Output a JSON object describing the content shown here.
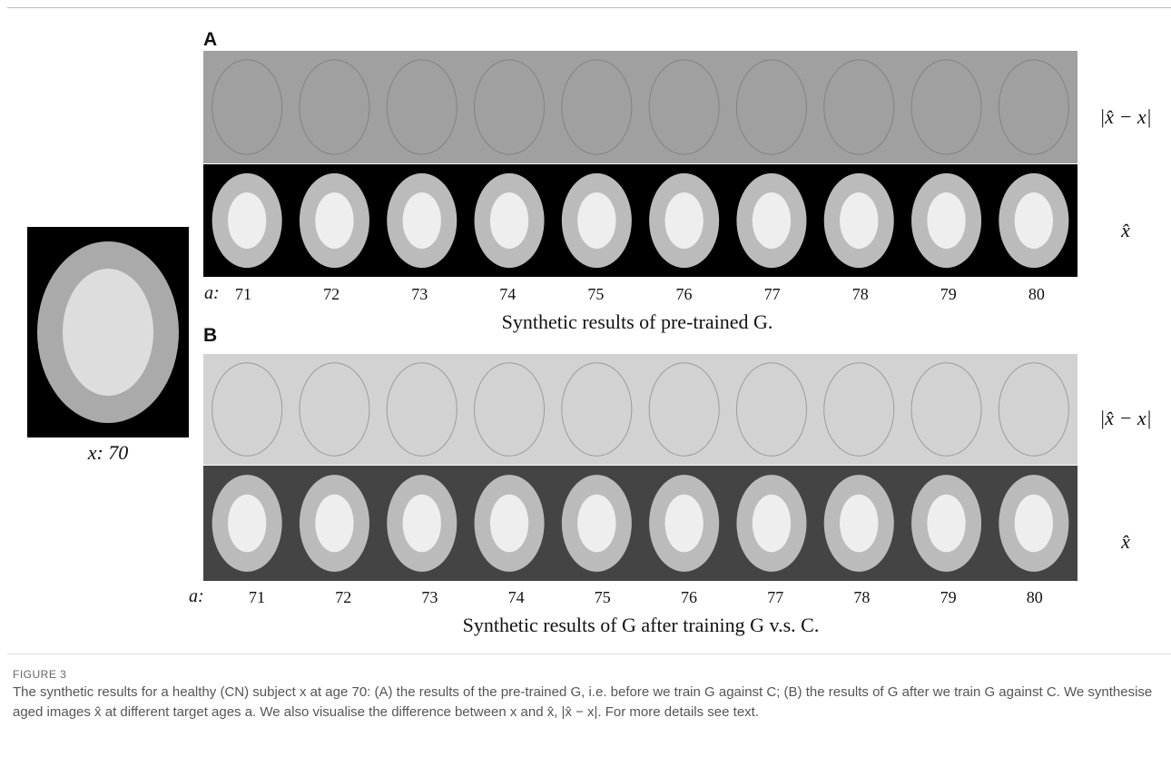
{
  "figure": {
    "input": {
      "label": "x: 70"
    },
    "panels": [
      {
        "label": "A",
        "row_labels": [
          "|x̂ − x|",
          "x̂"
        ],
        "age_prefix": "a:",
        "ages": [
          71,
          72,
          73,
          74,
          75,
          76,
          77,
          78,
          79,
          80
        ],
        "caption": "Synthetic results of pre-trained G."
      },
      {
        "label": "B",
        "row_labels": [
          "|x̂ − x|",
          "x̂"
        ],
        "age_prefix": "a:",
        "ages": [
          71,
          72,
          73,
          74,
          75,
          76,
          77,
          78,
          79,
          80
        ],
        "caption": "Synthetic results of G after training G v.s. C."
      }
    ],
    "figure_label": "FIGURE 3",
    "caption": "The synthetic results for a healthy (CN) subject x at age 70: (A) the results of the pre-trained G, i.e. before we train G against C; (B) the results of G after we train G against C. We synthesise aged images x̂ at different target ages a. We also visualise the difference between x and x̂, |x̂ − x|. For more details see text."
  }
}
